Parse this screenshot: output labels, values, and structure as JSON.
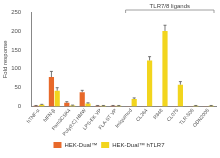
{
  "chart_data": {
    "type": "bar",
    "y_label": "Fold response",
    "categories": [
      "hTNF-α",
      "hIFN-β",
      "Pam3CSK4",
      "Poly(I:C) HMW",
      "LPS-EK VP",
      "FLA-ST VP",
      "Imiquimod",
      "CL264",
      "R848",
      "CL075",
      "TLR-506",
      "ODN2006"
    ],
    "series": [
      {
        "name": "HEK-Dual™",
        "color": "#e8692a",
        "values": [
          2,
          78,
          10,
          38,
          2,
          2,
          1,
          1,
          1,
          1,
          1,
          1
        ],
        "errors": [
          1,
          15,
          3,
          5,
          1,
          1,
          0,
          0,
          0,
          0,
          0,
          0
        ]
      },
      {
        "name": "HEK-Dual™ hTLR7",
        "color": "#f2d51d",
        "values": [
          5,
          42,
          3,
          8,
          2,
          2,
          20,
          122,
          200,
          58,
          2,
          2
        ],
        "errors": [
          1,
          8,
          1,
          2,
          1,
          1,
          3,
          10,
          15,
          8,
          1,
          1
        ]
      }
    ],
    "annotations": [
      {
        "text": "TLR7/8 ligands",
        "from": "Imiquimod",
        "to": "ODN2006"
      }
    ],
    "ylim": [
      0,
      250
    ],
    "yticks": [
      0,
      50,
      100,
      150,
      200,
      250
    ],
    "grid": false,
    "legend": "bottom"
  }
}
